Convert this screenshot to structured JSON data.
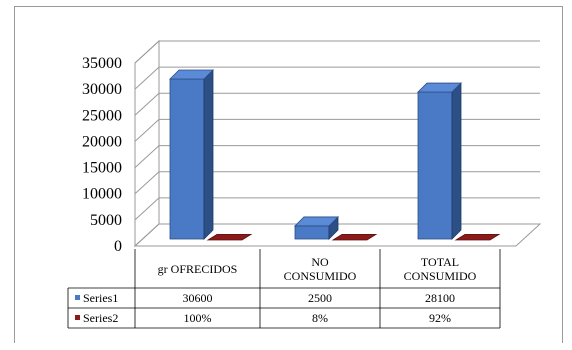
{
  "chart_data": {
    "type": "bar",
    "style": "3d-clustered-column-with-data-table",
    "categories": [
      "gr OFRECIDOS",
      "NO CONSUMIDO",
      "TOTAL CONSUMIDO"
    ],
    "category_lines": [
      [
        "gr OFRECIDOS"
      ],
      [
        "NO",
        "CONSUMIDO"
      ],
      [
        "TOTAL",
        "CONSUMIDO"
      ]
    ],
    "series": [
      {
        "name": "Series1",
        "values": [
          30600,
          2500,
          28100
        ],
        "labels": [
          "30600",
          "2500",
          "28100"
        ],
        "color": "#4a7ac5"
      },
      {
        "name": "Series2",
        "values": [
          1,
          0.08,
          0.92
        ],
        "labels": [
          "100%",
          "8%",
          "92%"
        ],
        "color": "#8b1a1a"
      }
    ],
    "yticks": [
      "0",
      "5000",
      "10000",
      "15000",
      "20000",
      "25000",
      "30000",
      "35000"
    ],
    "ylim": [
      0,
      35000
    ],
    "grid": true,
    "legend": "data-table"
  }
}
